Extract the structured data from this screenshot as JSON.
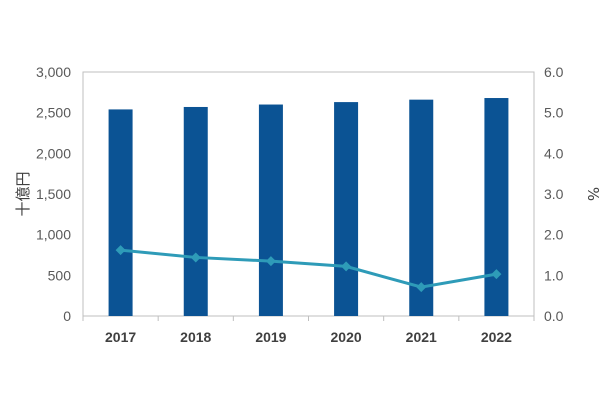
{
  "chart_data": {
    "type": "bar+line",
    "categories": [
      "2017",
      "2018",
      "2019",
      "2020",
      "2021",
      "2022"
    ],
    "series": [
      {
        "values": [
          2540,
          2570,
          2600,
          2630,
          2660,
          2680
        ],
        "axis": "left",
        "kind": "bar",
        "color": "#0b5394"
      },
      {
        "values": [
          1.62,
          1.44,
          1.35,
          1.22,
          0.71,
          1.03
        ],
        "axis": "right",
        "kind": "line",
        "color": "#2e9bb8",
        "marker": "diamond"
      }
    ],
    "ylabel_left": "十億円",
    "ylabel_right": "%",
    "ylim_left": [
      0,
      3000
    ],
    "ylim_right": [
      0,
      6.0
    ],
    "yticks_left": [
      "0",
      "500",
      "1,000",
      "1,500",
      "2,000",
      "2,500",
      "3,000"
    ],
    "yticks_right": [
      "0.0",
      "1.0",
      "2.0",
      "3.0",
      "4.0",
      "5.0",
      "6.0"
    ],
    "grid": false,
    "legend": "none"
  }
}
